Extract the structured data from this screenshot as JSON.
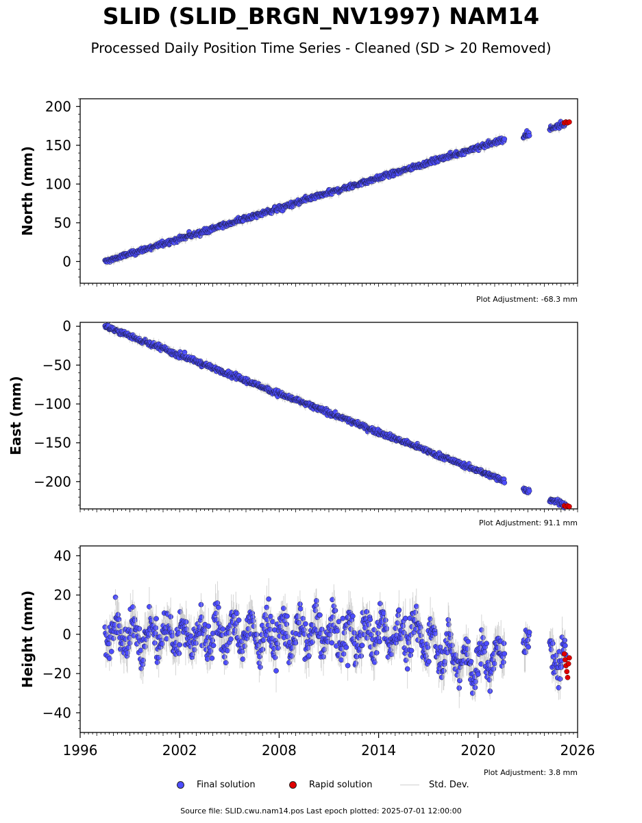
{
  "header": {
    "title": "SLID (SLID_BRGN_NV1997) NAM14",
    "subtitle": "Processed Daily Position Time Series - Cleaned (SD > 20 Removed)"
  },
  "colors": {
    "final": "#4d4dff",
    "rapid": "#e00000",
    "std": "#bdbdbd"
  },
  "legend": {
    "final": "Final solution",
    "rapid": "Rapid solution",
    "std": "Std. Dev."
  },
  "footer": "Source file: SLID.cwu.nam14.pos  Last epoch plotted: 2025-07-01 12:00:00",
  "chart_data": [
    {
      "type": "scatter",
      "ylabel": "North (mm)",
      "adjustment": "Plot Adjustment: -68.3 mm",
      "xlim": [
        1996,
        2026
      ],
      "ylim": [
        -28,
        210
      ],
      "yticks": [
        0,
        50,
        100,
        150,
        200
      ],
      "series": [
        {
          "name": "Final solution",
          "trend": [
            [
              1997.5,
              0
            ],
            [
              2021.5,
              157
            ],
            [
              2022.8,
              161
            ],
            [
              2025.3,
              178
            ]
          ],
          "gaps": [
            [
              2021.6,
              2022.7
            ],
            [
              2023.1,
              2024.3
            ]
          ],
          "noise": 3
        },
        {
          "name": "Rapid solution",
          "x": [
            2025.2,
            2025.3,
            2025.4,
            2025.5
          ],
          "y": [
            179,
            180,
            179,
            180
          ]
        }
      ]
    },
    {
      "type": "scatter",
      "ylabel": "East (mm)",
      "adjustment": "Plot Adjustment: 91.1 mm",
      "xlim": [
        1996,
        2026
      ],
      "ylim": [
        -235,
        5
      ],
      "yticks": [
        0,
        -50,
        -100,
        -150,
        -200
      ],
      "series": [
        {
          "name": "Final solution",
          "trend": [
            [
              1997.5,
              0
            ],
            [
              2021.5,
              -198
            ],
            [
              2022.8,
              -210
            ],
            [
              2025.3,
              -230
            ]
          ],
          "gaps": [
            [
              2021.6,
              2022.7
            ],
            [
              2023.1,
              2024.3
            ]
          ],
          "noise": 3
        },
        {
          "name": "Rapid solution",
          "x": [
            2025.2,
            2025.3,
            2025.4,
            2025.5
          ],
          "y": [
            -231,
            -232,
            -231,
            -232
          ]
        }
      ]
    },
    {
      "type": "scatter",
      "ylabel": "Height (mm)",
      "adjustment": "Plot Adjustment: 3.8 mm",
      "xlim": [
        1996,
        2026
      ],
      "ylim": [
        -50,
        45
      ],
      "yticks": [
        40,
        20,
        0,
        -20,
        -40
      ],
      "xticks": [
        1996,
        2002,
        2008,
        2014,
        2020,
        2026
      ],
      "series": [
        {
          "name": "Final solution",
          "trend": [
            [
              1997.5,
              0
            ],
            [
              2016.5,
              0
            ],
            [
              2019.5,
              -15
            ],
            [
              2021.5,
              -10
            ],
            [
              2022.8,
              0
            ],
            [
              2025.3,
              -15
            ]
          ],
          "gaps": [
            [
              2021.6,
              2022.7
            ],
            [
              2023.1,
              2024.3
            ]
          ],
          "noise": 9,
          "seasonal": 7
        },
        {
          "name": "Rapid solution",
          "x": [
            2025.2,
            2025.25,
            2025.3,
            2025.35,
            2025.4,
            2025.45,
            2025.5
          ],
          "y": [
            -10,
            -13,
            -16,
            -19,
            -22,
            -15,
            -12
          ]
        }
      ]
    }
  ]
}
